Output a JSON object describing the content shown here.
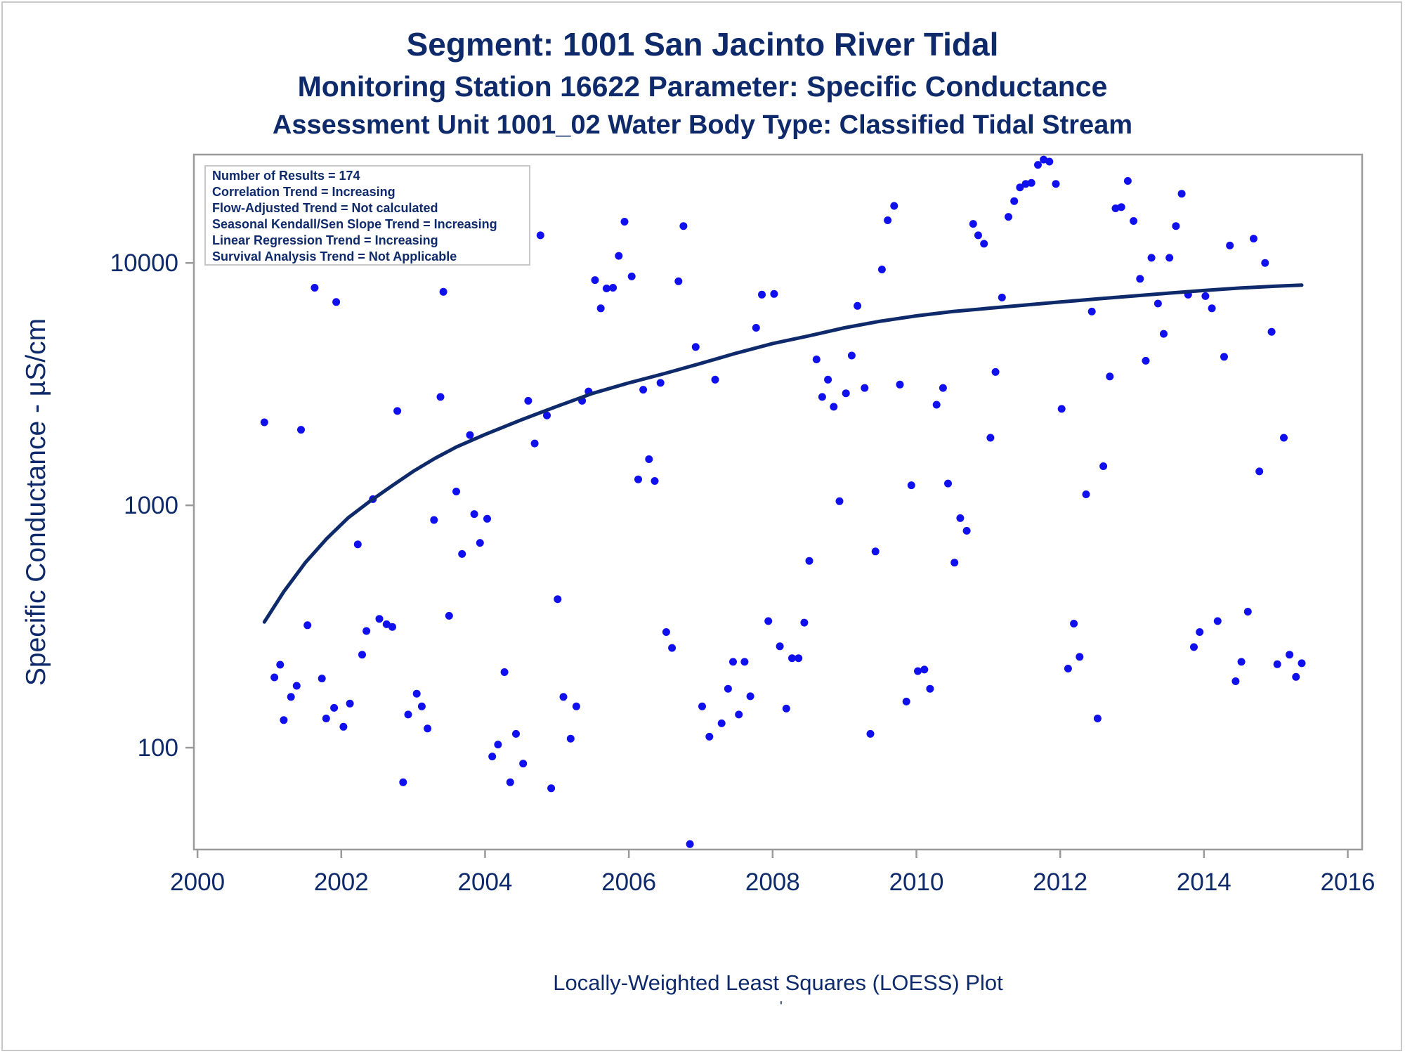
{
  "page": {
    "title": "Segment: 1001  San Jacinto River Tidal",
    "subtitle1": "Monitoring Station 16622 Parameter: Specific Conductance",
    "subtitle2": "Assessment Unit 1001_02   Water Body Type: Classified Tidal Stream",
    "footnote": "Locally-Weighted Least Squares (LOESS) Plot",
    "footmark": "'"
  },
  "colors": {
    "points": "#1010ee",
    "loess": "#0e2a6b",
    "text": "#0e2a6b",
    "axis": "#9a9a9a"
  },
  "chart_data": {
    "type": "scatter",
    "xlabel": "",
    "ylabel": "Specific Conductance -  µS/cm",
    "x_ticks": [
      2000,
      2002,
      2004,
      2006,
      2008,
      2010,
      2012,
      2014,
      2016
    ],
    "y_scale": "log",
    "y_ticks": [
      100,
      1000,
      10000
    ],
    "xlim": [
      1999.95,
      2016.2
    ],
    "ylim": [
      38,
      28000
    ],
    "stats": [
      "Number of Results = 174",
      "Correlation Trend = Increasing",
      "Flow-Adjusted Trend = Not calculated",
      "Seasonal Kendall/Sen Slope Trend = Increasing",
      "Linear Regression Trend = Increasing",
      "Survival Analysis Trend = Not Applicable"
    ],
    "legend_position": "top-left",
    "grid": false,
    "points": [
      [
        2000.93,
        2200
      ],
      [
        2001.07,
        195
      ],
      [
        2001.15,
        220
      ],
      [
        2001.2,
        130
      ],
      [
        2001.3,
        162
      ],
      [
        2001.38,
        180
      ],
      [
        2001.44,
        2050
      ],
      [
        2001.53,
        320
      ],
      [
        2001.63,
        7900
      ],
      [
        2001.73,
        193
      ],
      [
        2001.79,
        132
      ],
      [
        2001.9,
        146
      ],
      [
        2001.93,
        6900
      ],
      [
        2002.03,
        122
      ],
      [
        2002.12,
        152
      ],
      [
        2002.23,
        690
      ],
      [
        2002.29,
        242
      ],
      [
        2002.35,
        303
      ],
      [
        2002.44,
        1060
      ],
      [
        2002.53,
        340
      ],
      [
        2002.63,
        323
      ],
      [
        2002.71,
        315
      ],
      [
        2002.78,
        2450
      ],
      [
        2002.86,
        72
      ],
      [
        2002.93,
        137
      ],
      [
        2003.05,
        167
      ],
      [
        2003.12,
        148
      ],
      [
        2003.2,
        120
      ],
      [
        2003.29,
        870
      ],
      [
        2003.38,
        2800
      ],
      [
        2003.42,
        7600
      ],
      [
        2003.5,
        350
      ],
      [
        2003.6,
        1140
      ],
      [
        2003.68,
        630
      ],
      [
        2003.79,
        1950
      ],
      [
        2003.85,
        920
      ],
      [
        2003.93,
        700
      ],
      [
        2004.03,
        880
      ],
      [
        2004.1,
        92
      ],
      [
        2004.18,
        103
      ],
      [
        2004.27,
        205
      ],
      [
        2004.35,
        72
      ],
      [
        2004.43,
        114
      ],
      [
        2004.53,
        86
      ],
      [
        2004.6,
        2700
      ],
      [
        2004.69,
        1800
      ],
      [
        2004.77,
        13000
      ],
      [
        2004.86,
        2350
      ],
      [
        2004.92,
        68
      ],
      [
        2005.01,
        410
      ],
      [
        2005.09,
        162
      ],
      [
        2005.19,
        109
      ],
      [
        2005.27,
        148
      ],
      [
        2005.35,
        2700
      ],
      [
        2005.44,
        2950
      ],
      [
        2005.53,
        8500
      ],
      [
        2005.61,
        6500
      ],
      [
        2005.69,
        7850
      ],
      [
        2005.78,
        7900
      ],
      [
        2005.86,
        10700
      ],
      [
        2005.94,
        14800
      ],
      [
        2006.04,
        8800
      ],
      [
        2006.13,
        1280
      ],
      [
        2006.2,
        3000
      ],
      [
        2006.28,
        1550
      ],
      [
        2006.36,
        1260
      ],
      [
        2006.44,
        3200
      ],
      [
        2006.52,
        300
      ],
      [
        2006.6,
        258
      ],
      [
        2006.69,
        8400
      ],
      [
        2006.76,
        14200
      ],
      [
        2006.85,
        40
      ],
      [
        2006.93,
        4500
      ],
      [
        2007.02,
        148
      ],
      [
        2007.12,
        111
      ],
      [
        2007.2,
        3300
      ],
      [
        2007.29,
        126
      ],
      [
        2007.38,
        175
      ],
      [
        2007.45,
        226
      ],
      [
        2007.53,
        137
      ],
      [
        2007.61,
        226
      ],
      [
        2007.69,
        163
      ],
      [
        2007.77,
        5400
      ],
      [
        2007.85,
        7400
      ],
      [
        2007.94,
        333
      ],
      [
        2008.02,
        7450
      ],
      [
        2008.1,
        262
      ],
      [
        2008.19,
        145
      ],
      [
        2008.27,
        234
      ],
      [
        2008.36,
        234
      ],
      [
        2008.44,
        328
      ],
      [
        2008.51,
        590
      ],
      [
        2008.61,
        4000
      ],
      [
        2008.69,
        2800
      ],
      [
        2008.77,
        3300
      ],
      [
        2008.85,
        2550
      ],
      [
        2008.93,
        1040
      ],
      [
        2009.02,
        2900
      ],
      [
        2009.1,
        4150
      ],
      [
        2009.18,
        6650
      ],
      [
        2009.28,
        3050
      ],
      [
        2009.36,
        114
      ],
      [
        2009.43,
        645
      ],
      [
        2009.52,
        9400
      ],
      [
        2009.6,
        15000
      ],
      [
        2009.69,
        17200
      ],
      [
        2009.77,
        3150
      ],
      [
        2009.86,
        155
      ],
      [
        2009.93,
        1210
      ],
      [
        2010.02,
        207
      ],
      [
        2010.11,
        210
      ],
      [
        2010.19,
        175
      ],
      [
        2010.28,
        2600
      ],
      [
        2010.37,
        3050
      ],
      [
        2010.44,
        1230
      ],
      [
        2010.53,
        580
      ],
      [
        2010.61,
        885
      ],
      [
        2010.7,
        785
      ],
      [
        2010.79,
        14500
      ],
      [
        2010.86,
        13000
      ],
      [
        2010.94,
        12000
      ],
      [
        2011.03,
        1900
      ],
      [
        2011.1,
        3550
      ],
      [
        2011.19,
        7200
      ],
      [
        2011.28,
        15500
      ],
      [
        2011.36,
        18000
      ],
      [
        2011.44,
        20500
      ],
      [
        2011.52,
        21200
      ],
      [
        2011.6,
        21400
      ],
      [
        2011.69,
        25400
      ],
      [
        2011.77,
        26700
      ],
      [
        2011.85,
        26200
      ],
      [
        2011.94,
        21200
      ],
      [
        2012.02,
        2500
      ],
      [
        2012.11,
        212
      ],
      [
        2012.19,
        325
      ],
      [
        2012.27,
        237
      ],
      [
        2012.36,
        1110
      ],
      [
        2012.44,
        6300
      ],
      [
        2012.52,
        132
      ],
      [
        2012.6,
        1450
      ],
      [
        2012.69,
        3400
      ],
      [
        2012.77,
        16800
      ],
      [
        2012.85,
        17000
      ],
      [
        2012.94,
        21800
      ],
      [
        2013.02,
        14900
      ],
      [
        2013.11,
        8600
      ],
      [
        2013.19,
        3950
      ],
      [
        2013.27,
        10500
      ],
      [
        2013.36,
        6800
      ],
      [
        2013.44,
        5100
      ],
      [
        2013.52,
        10500
      ],
      [
        2013.61,
        14200
      ],
      [
        2013.69,
        19300
      ],
      [
        2013.78,
        7400
      ],
      [
        2013.86,
        260
      ],
      [
        2013.94,
        300
      ],
      [
        2014.02,
        7300
      ],
      [
        2014.11,
        6500
      ],
      [
        2014.19,
        333
      ],
      [
        2014.28,
        4100
      ],
      [
        2014.36,
        11800
      ],
      [
        2014.44,
        188
      ],
      [
        2014.52,
        226
      ],
      [
        2014.61,
        364
      ],
      [
        2014.69,
        12600
      ],
      [
        2014.77,
        1380
      ],
      [
        2014.85,
        10000
      ],
      [
        2014.94,
        5200
      ],
      [
        2015.02,
        221
      ],
      [
        2015.11,
        1900
      ],
      [
        2015.19,
        242
      ],
      [
        2015.28,
        196
      ],
      [
        2015.36,
        223
      ]
    ],
    "loess": [
      [
        2000.93,
        330
      ],
      [
        2001.2,
        440
      ],
      [
        2001.5,
        580
      ],
      [
        2001.8,
        730
      ],
      [
        2002.1,
        890
      ],
      [
        2002.4,
        1040
      ],
      [
        2002.7,
        1200
      ],
      [
        2003.0,
        1380
      ],
      [
        2003.3,
        1560
      ],
      [
        2003.6,
        1740
      ],
      [
        2004.0,
        1960
      ],
      [
        2004.5,
        2250
      ],
      [
        2005.0,
        2560
      ],
      [
        2005.5,
        2900
      ],
      [
        2006.0,
        3200
      ],
      [
        2006.5,
        3500
      ],
      [
        2007.0,
        3850
      ],
      [
        2007.5,
        4250
      ],
      [
        2008.0,
        4650
      ],
      [
        2008.5,
        5000
      ],
      [
        2009.0,
        5400
      ],
      [
        2009.5,
        5750
      ],
      [
        2010.0,
        6050
      ],
      [
        2010.5,
        6300
      ],
      [
        2011.0,
        6500
      ],
      [
        2011.5,
        6700
      ],
      [
        2012.0,
        6900
      ],
      [
        2012.5,
        7100
      ],
      [
        2013.0,
        7300
      ],
      [
        2013.5,
        7500
      ],
      [
        2014.0,
        7700
      ],
      [
        2014.5,
        7880
      ],
      [
        2015.0,
        8020
      ],
      [
        2015.36,
        8100
      ]
    ]
  }
}
